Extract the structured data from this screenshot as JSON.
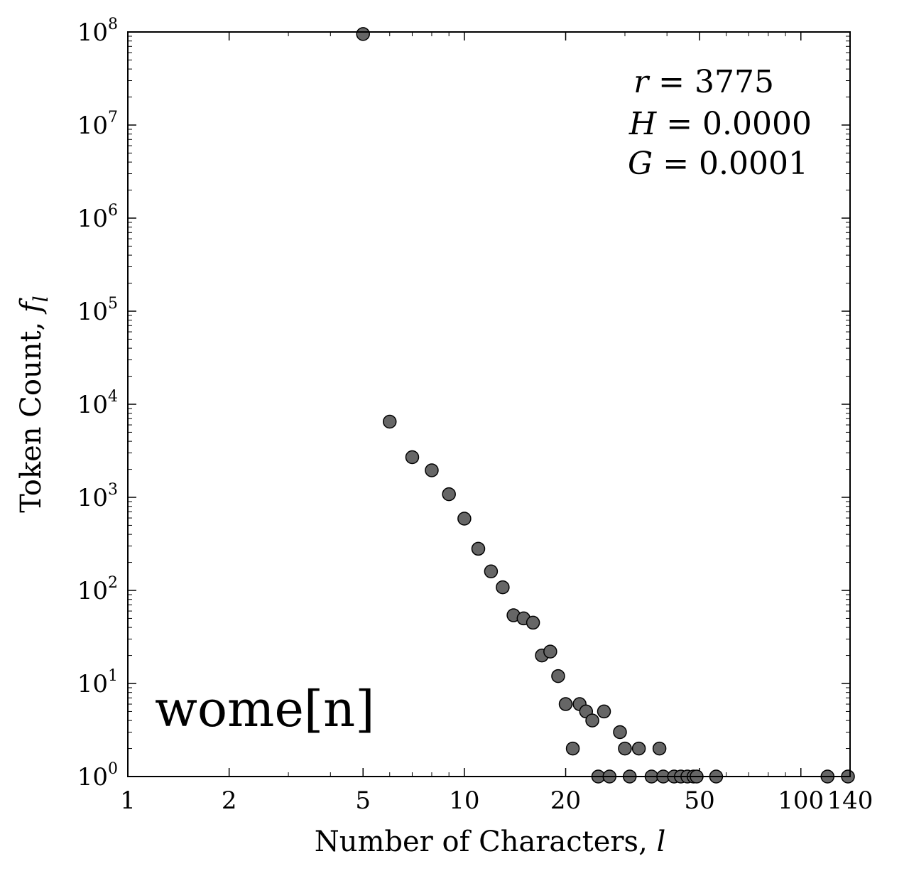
{
  "chart_data": {
    "type": "scatter",
    "xlabel": "Number of Characters,",
    "xlabel_var": "l",
    "ylabel": "Token Count,",
    "ylabel_var": "f",
    "ylabel_sub": "l",
    "x_scale": "log",
    "y_scale": "log",
    "xlim": [
      1,
      140
    ],
    "ylim": [
      1,
      100000000
    ],
    "x_ticks": [
      {
        "value": 1,
        "label": "1"
      },
      {
        "value": 2,
        "label": "2"
      },
      {
        "value": 5,
        "label": "5"
      },
      {
        "value": 10,
        "label": "10"
      },
      {
        "value": 20,
        "label": "20"
      },
      {
        "value": 50,
        "label": "50"
      },
      {
        "value": 100,
        "label": "100"
      },
      {
        "value": 140,
        "label": "140"
      }
    ],
    "y_ticks": [
      {
        "value": 1,
        "base": "10",
        "exp": "0"
      },
      {
        "value": 10,
        "base": "10",
        "exp": "1"
      },
      {
        "value": 100,
        "base": "10",
        "exp": "2"
      },
      {
        "value": 1000,
        "base": "10",
        "exp": "3"
      },
      {
        "value": 10000,
        "base": "10",
        "exp": "4"
      },
      {
        "value": 100000,
        "base": "10",
        "exp": "5"
      },
      {
        "value": 1000000,
        "base": "10",
        "exp": "6"
      },
      {
        "value": 10000000,
        "base": "10",
        "exp": "7"
      },
      {
        "value": 100000000,
        "base": "10",
        "exp": "8"
      }
    ],
    "stats": [
      {
        "var": "r",
        "text": "= 3775"
      },
      {
        "var": "H",
        "text": "= 0.0000"
      },
      {
        "var": "G",
        "text": "= 0.0001"
      }
    ],
    "annotation": "wome[n]",
    "marker_color": "#666666",
    "grid": false,
    "points": [
      [
        5,
        95000000
      ],
      [
        6,
        6500
      ],
      [
        7,
        2700
      ],
      [
        8,
        1950
      ],
      [
        9,
        1080
      ],
      [
        10,
        590
      ],
      [
        11,
        280
      ],
      [
        12,
        160
      ],
      [
        13,
        108
      ],
      [
        14,
        54
      ],
      [
        15,
        50
      ],
      [
        16,
        45
      ],
      [
        17,
        20
      ],
      [
        18,
        22
      ],
      [
        19,
        12
      ],
      [
        20,
        6
      ],
      [
        21,
        2
      ],
      [
        22,
        6
      ],
      [
        23,
        5
      ],
      [
        24,
        4
      ],
      [
        25,
        1
      ],
      [
        26,
        5
      ],
      [
        27,
        1
      ],
      [
        29,
        3
      ],
      [
        30,
        2
      ],
      [
        31,
        1
      ],
      [
        33,
        2
      ],
      [
        36,
        1
      ],
      [
        38,
        2
      ],
      [
        39,
        1
      ],
      [
        42,
        1
      ],
      [
        44,
        1
      ],
      [
        46,
        1
      ],
      [
        48,
        1
      ],
      [
        49,
        1
      ],
      [
        56,
        1
      ],
      [
        120,
        1
      ],
      [
        138,
        1
      ]
    ]
  }
}
